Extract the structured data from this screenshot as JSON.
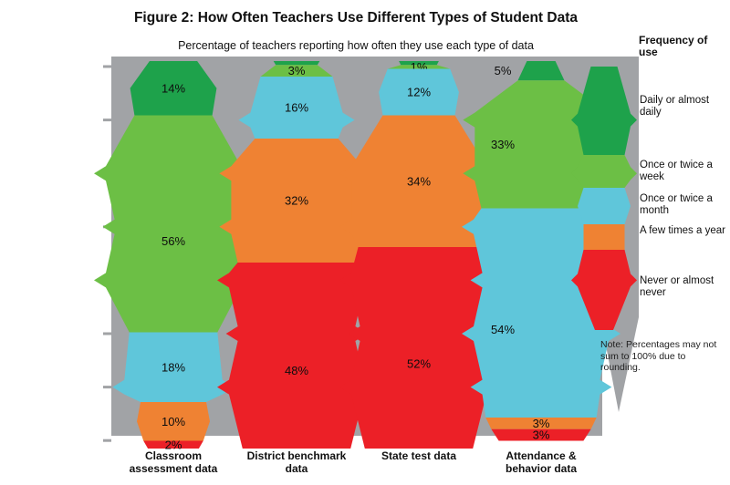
{
  "figure": {
    "title": "Figure 2: How Often Teachers Use Different Types of Student Data",
    "subtitle": "Percentage of teachers reporting how often they use each type of data",
    "legend_title": "Frequency of use",
    "note": "Note: Percentages may not sum to 100% due to rounding."
  },
  "colors": {
    "daily": "#1EA24B",
    "weekly": "#6CBF45",
    "monthly": "#5FC6DA",
    "few_times_year": "#EF8233",
    "never": "#EC2027",
    "track_gray": "#A1A3A6",
    "text": "#111111",
    "background": "#FFFFFF"
  },
  "chart_data": {
    "type": "bar",
    "variant": "100%-stacked-distribution-columns",
    "ylim": [
      0,
      100
    ],
    "grid": false,
    "legend_position": "right",
    "categories": [
      "Classroom assessment data",
      "District benchmark data",
      "State test data",
      "Attendance & behavior data"
    ],
    "legend": [
      {
        "key": "daily",
        "label": "Daily or almost daily"
      },
      {
        "key": "weekly",
        "label": "Once or twice a week"
      },
      {
        "key": "monthly",
        "label": "Once or twice a month"
      },
      {
        "key": "few_times_year",
        "label": "A few times a year"
      },
      {
        "key": "never",
        "label": "Never or almost never"
      }
    ],
    "columns": [
      {
        "category": "Classroom assessment data",
        "segments": [
          {
            "key": "daily",
            "value": 14,
            "label": "14%"
          },
          {
            "key": "weekly",
            "value": 56,
            "label": "56%"
          },
          {
            "key": "monthly",
            "value": 18,
            "label": "18%"
          },
          {
            "key": "few_times_year",
            "value": 10,
            "label": "10%"
          },
          {
            "key": "never",
            "value": 2,
            "label": "2%"
          }
        ]
      },
      {
        "category": "District benchmark data",
        "segments": [
          {
            "key": "daily",
            "value": 1,
            "label": ""
          },
          {
            "key": "weekly",
            "value": 3,
            "label": "3%"
          },
          {
            "key": "monthly",
            "value": 16,
            "label": "16%"
          },
          {
            "key": "few_times_year",
            "value": 32,
            "label": "32%"
          },
          {
            "key": "never",
            "value": 48,
            "label": "48%"
          }
        ]
      },
      {
        "category": "State test data",
        "segments": [
          {
            "key": "daily",
            "value": 1,
            "label": ""
          },
          {
            "key": "weekly",
            "value": 1,
            "label": "1%"
          },
          {
            "key": "monthly",
            "value": 12,
            "label": "12%"
          },
          {
            "key": "few_times_year",
            "value": 34,
            "label": "34%"
          },
          {
            "key": "never",
            "value": 52,
            "label": "52%"
          }
        ]
      },
      {
        "category": "Attendance & behavior data",
        "segments": [
          {
            "key": "daily",
            "value": 5,
            "label": "5%"
          },
          {
            "key": "weekly",
            "value": 33,
            "label": "33%"
          },
          {
            "key": "monthly",
            "value": 54,
            "label": "54%"
          },
          {
            "key": "few_times_year",
            "value": 3,
            "label": "3%"
          },
          {
            "key": "never",
            "value": 3,
            "label": "3%"
          }
        ]
      }
    ]
  }
}
